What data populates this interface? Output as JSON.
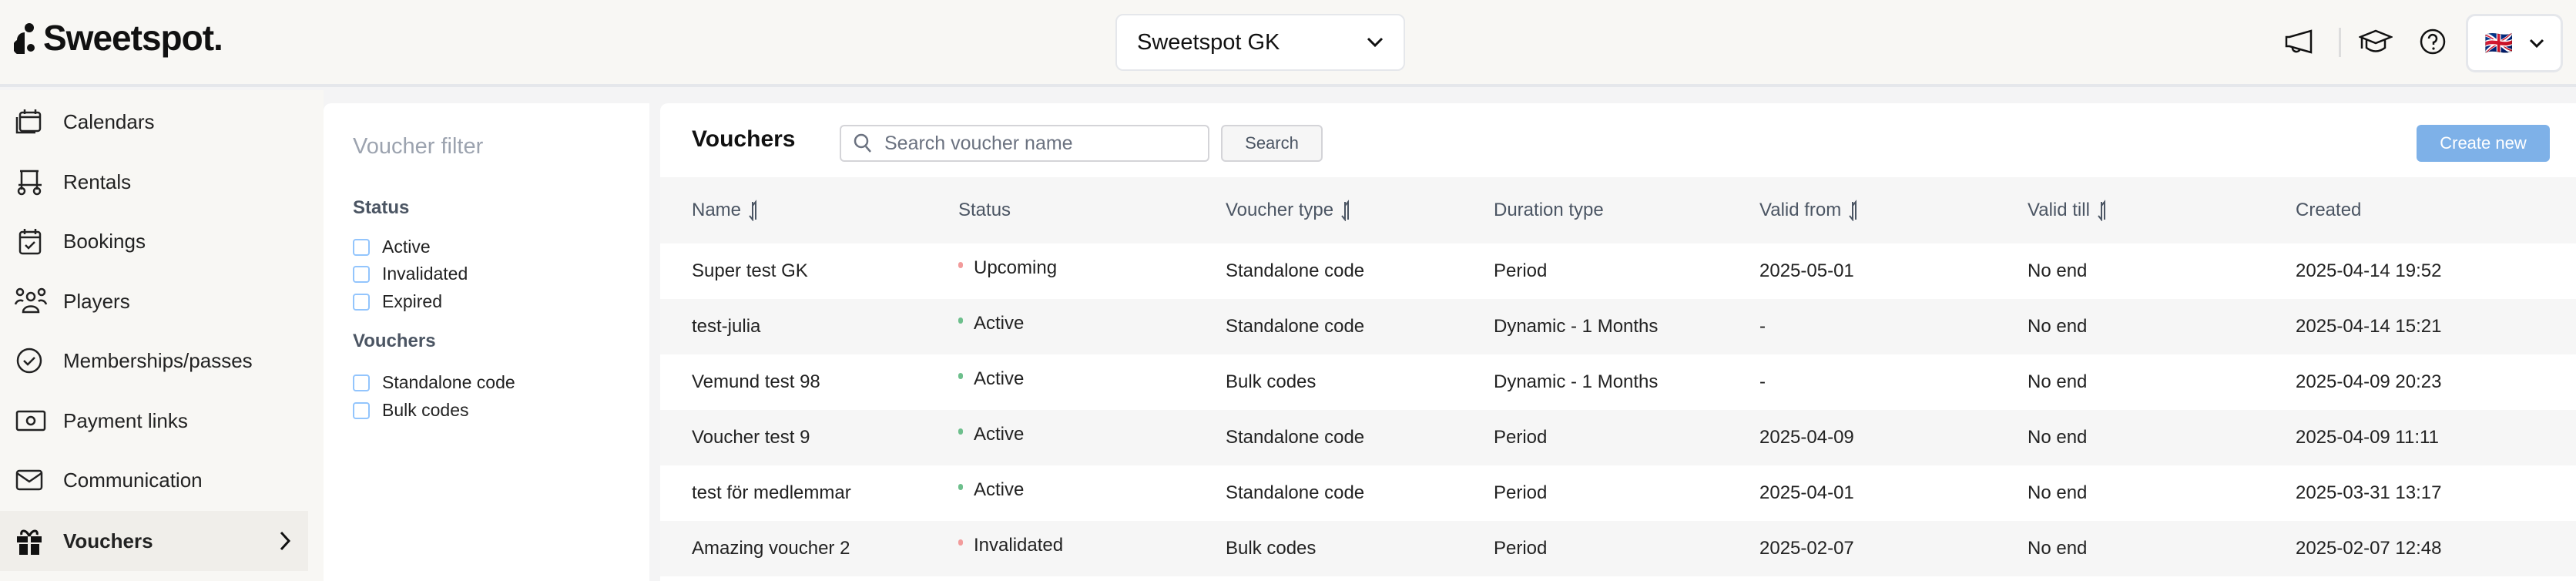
{
  "header": {
    "brand": "Sweetspot.",
    "club_selector": "Sweetspot GK",
    "language_flag": "🇬🇧"
  },
  "sidebar": {
    "items": [
      {
        "label": "Calendars",
        "icon": "calendar-icon"
      },
      {
        "label": "Rentals",
        "icon": "golf-cart-icon"
      },
      {
        "label": "Bookings",
        "icon": "calendar-check-icon"
      },
      {
        "label": "Players",
        "icon": "users-icon"
      },
      {
        "label": "Memberships/passes",
        "icon": "badge-check-icon"
      },
      {
        "label": "Payment links",
        "icon": "money-icon"
      },
      {
        "label": "Communication",
        "icon": "mail-icon"
      },
      {
        "label": "Vouchers",
        "icon": "gift-icon",
        "active": true
      }
    ]
  },
  "filter": {
    "title": "Voucher filter",
    "status_label": "Status",
    "status_options": [
      "Active",
      "Invalidated",
      "Expired"
    ],
    "vouchers_label": "Vouchers",
    "voucher_options": [
      "Standalone code",
      "Bulk codes"
    ]
  },
  "main": {
    "title": "Vouchers",
    "search_placeholder": "Search voucher name",
    "search_button": "Search",
    "create_button": "Create new",
    "columns": [
      "Name",
      "Status",
      "Voucher type",
      "Duration type",
      "Valid from",
      "Valid till",
      "Created"
    ],
    "rows": [
      {
        "name": "Super test GK",
        "status": "Upcoming",
        "type": "Standalone code",
        "duration": "Period",
        "from": "2025-05-01",
        "till": "No end",
        "created": "2025-04-14 19:52"
      },
      {
        "name": "test-julia",
        "status": "Active",
        "type": "Standalone code",
        "duration": "Dynamic - 1 Months",
        "from": "-",
        "till": "No end",
        "created": "2025-04-14 15:21"
      },
      {
        "name": "Vemund test 98",
        "status": "Active",
        "type": "Bulk codes",
        "duration": "Dynamic - 1 Months",
        "from": "-",
        "till": "No end",
        "created": "2025-04-09 20:23"
      },
      {
        "name": "Voucher test 9",
        "status": "Active",
        "type": "Standalone code",
        "duration": "Period",
        "from": "2025-04-09",
        "till": "No end",
        "created": "2025-04-09 11:11"
      },
      {
        "name": "test för medlemmar",
        "status": "Active",
        "type": "Standalone code",
        "duration": "Period",
        "from": "2025-04-01",
        "till": "No end",
        "created": "2025-03-31 13:17"
      },
      {
        "name": "Amazing voucher 2",
        "status": "Invalidated",
        "type": "Bulk codes",
        "duration": "Period",
        "from": "2025-02-07",
        "till": "No end",
        "created": "2025-02-07 12:48"
      }
    ]
  },
  "colors": {
    "accent": "#7eb1e8",
    "status_active": "#6dbf8c",
    "status_upcoming": "#f29b9b",
    "status_invalidated": "#f29b9b"
  }
}
